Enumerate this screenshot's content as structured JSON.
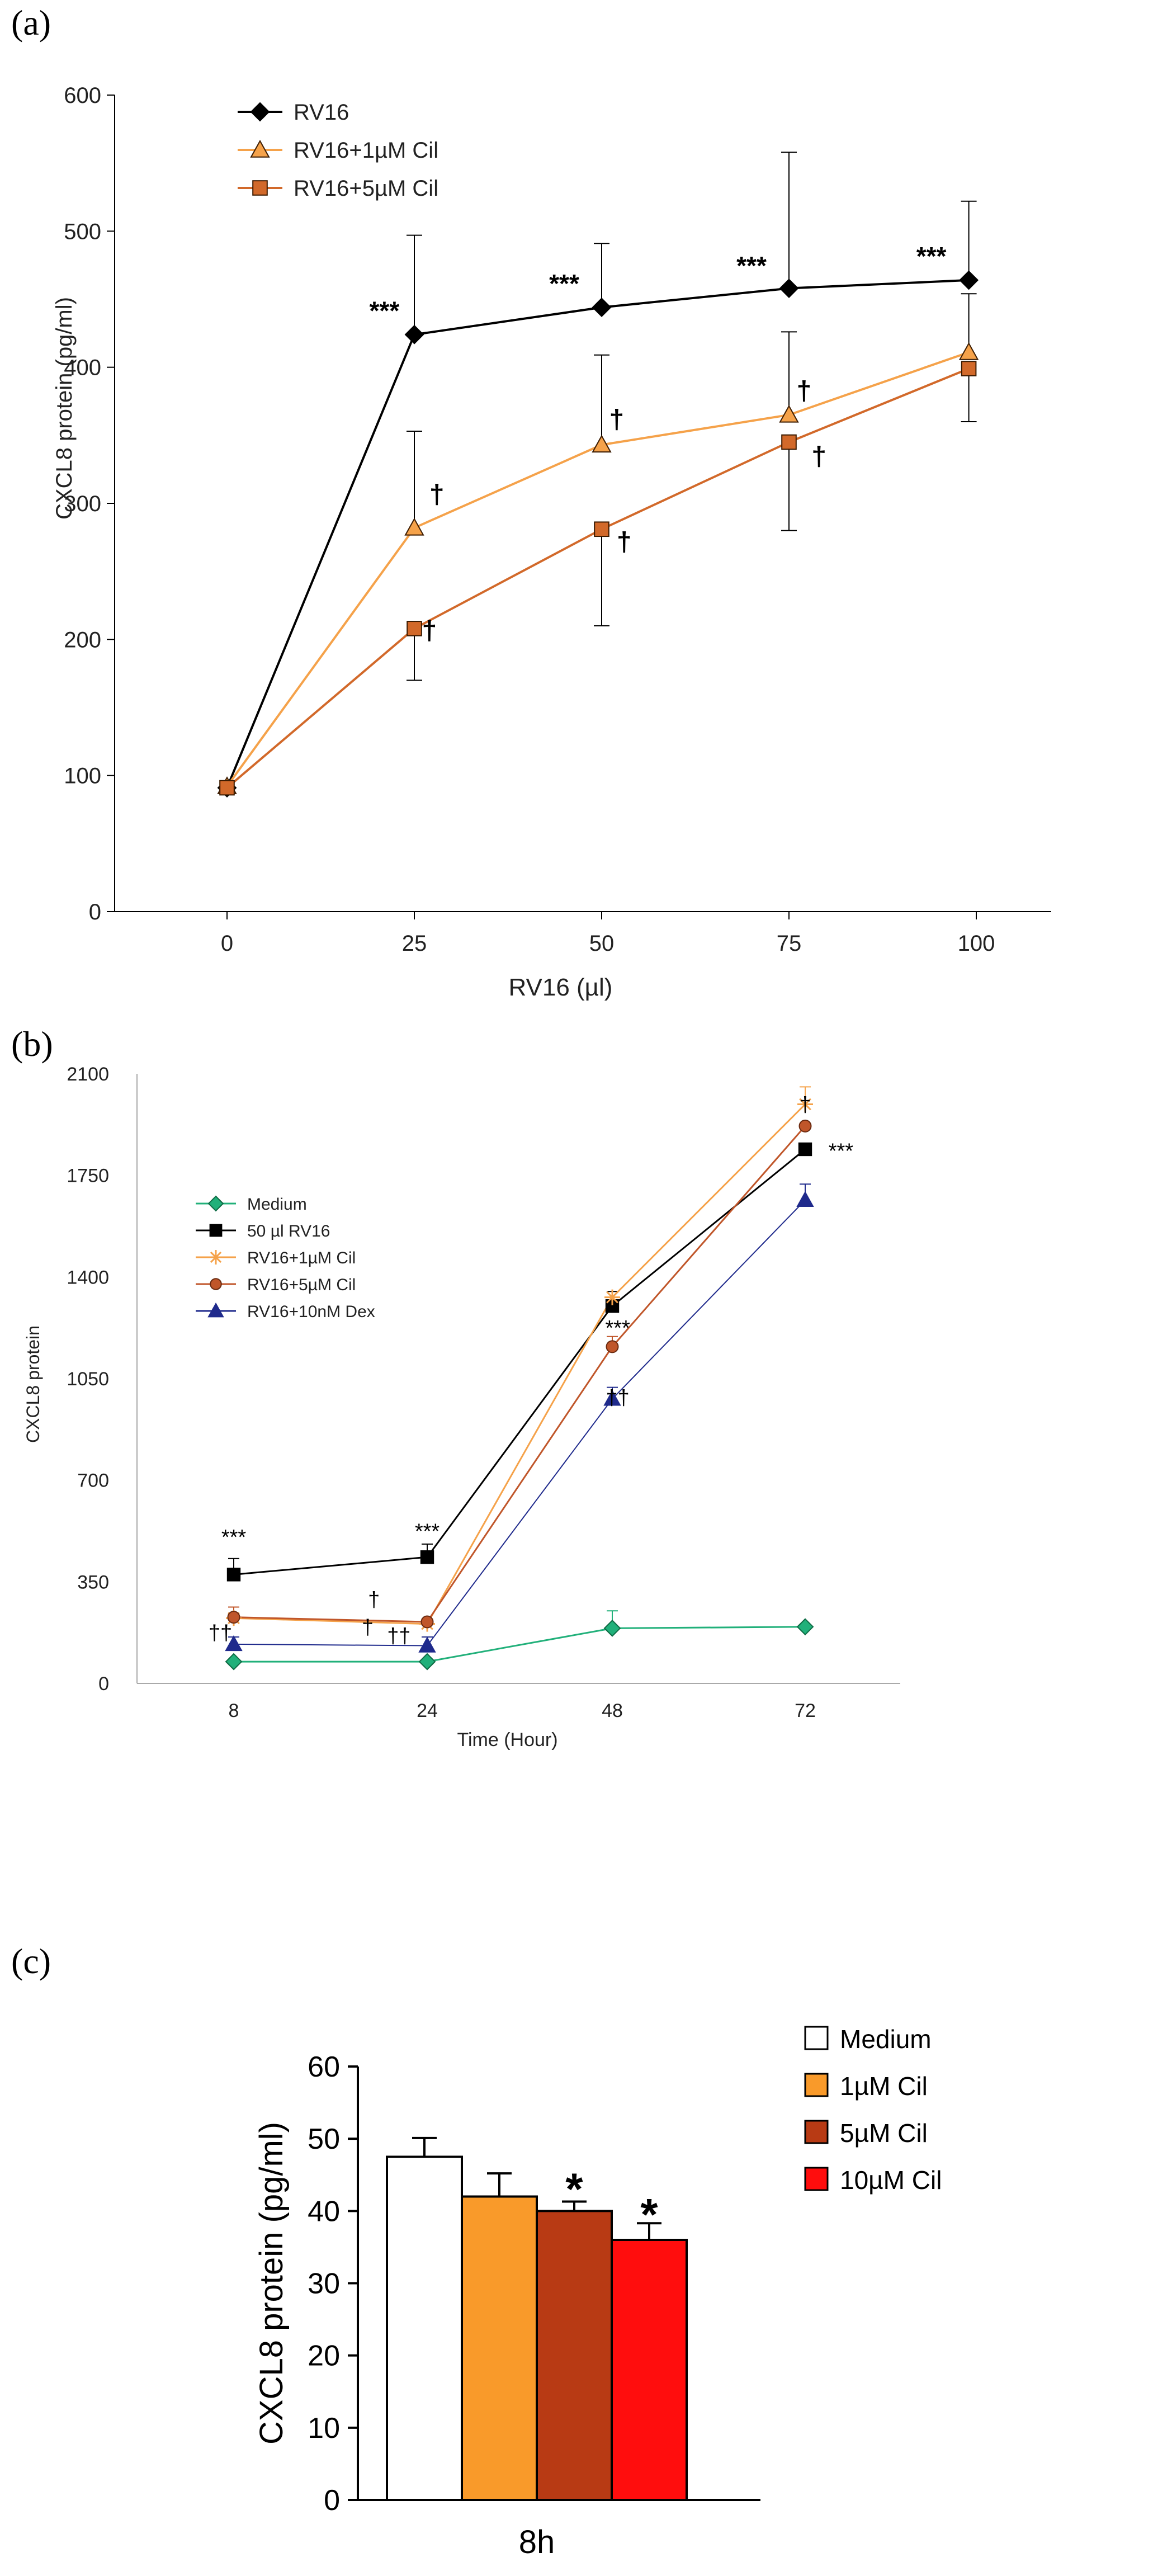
{
  "panels": {
    "a": {
      "label": "(a)"
    },
    "b": {
      "label": "(b)"
    },
    "c": {
      "label": "(c)"
    }
  },
  "chart_data": [
    {
      "type": "line",
      "title": "",
      "xlabel": "RV16 (µl)",
      "ylabel": "CXCL8 protein (pg/ml)",
      "x": [
        0,
        25,
        50,
        75,
        100
      ],
      "x_tick_labels": [
        "0",
        "25",
        "50",
        "75",
        "100"
      ],
      "xlim": [
        -15,
        110
      ],
      "ylim": [
        0,
        600
      ],
      "y_ticks": [
        0,
        100,
        200,
        300,
        400,
        500,
        600
      ],
      "grid": false,
      "legend_position": "top-left",
      "series": [
        {
          "name": "RV16",
          "marker": "diamond",
          "color": "#000000",
          "x": [
            0,
            25,
            50,
            75,
            99
          ],
          "values": [
            91,
            424,
            444,
            458,
            464
          ],
          "err_up": [
            0,
            73,
            47,
            100,
            58
          ]
        },
        {
          "name": "RV16+1µM Cil",
          "marker": "triangle",
          "color": "#f5a24a",
          "x": [
            0,
            25,
            50,
            75,
            99
          ],
          "values": [
            92,
            282,
            343,
            365,
            411
          ],
          "err_up": [
            0,
            71,
            66,
            61,
            43
          ]
        },
        {
          "name": "RV16+5µM Cil",
          "marker": "square",
          "color": "#d2692a",
          "x": [
            0,
            25,
            50,
            75,
            99
          ],
          "values": [
            91,
            208,
            281,
            345,
            399
          ],
          "err_down": [
            0,
            38,
            71,
            65,
            39
          ]
        }
      ],
      "annotations": [
        {
          "text": "***",
          "x": 21,
          "y": 435
        },
        {
          "text": "***",
          "x": 45,
          "y": 455
        },
        {
          "text": "***",
          "x": 70,
          "y": 468
        },
        {
          "text": "***",
          "x": 94,
          "y": 475
        },
        {
          "text": "†",
          "x": 28,
          "y": 300
        },
        {
          "text": "†",
          "x": 27,
          "y": 200
        },
        {
          "text": "†",
          "x": 52,
          "y": 355
        },
        {
          "text": "†",
          "x": 53,
          "y": 265
        },
        {
          "text": "†",
          "x": 77,
          "y": 376
        },
        {
          "text": "†",
          "x": 79,
          "y": 328
        }
      ]
    },
    {
      "type": "line",
      "title": "",
      "xlabel": "Time (Hour)",
      "ylabel": "CXCL8 protein",
      "x": [
        8,
        24,
        48,
        72
      ],
      "x_tick_labels": [
        "8",
        "24",
        "48",
        "72"
      ],
      "ylim": [
        0,
        2100
      ],
      "y_ticks": [
        0,
        350,
        700,
        1050,
        1400,
        1750,
        2100
      ],
      "grid": false,
      "legend_position": "top-left",
      "series": [
        {
          "name": "Medium",
          "marker": "diamond",
          "color": "#21b07a",
          "values": [
            75,
            75,
            190,
            195
          ],
          "err": [
            0,
            0,
            60,
            0
          ]
        },
        {
          "name": "50 µl RV16",
          "marker": "square",
          "color": "#000000",
          "values": [
            375,
            435,
            1300,
            1840
          ],
          "err": [
            55,
            45,
            50,
            0
          ]
        },
        {
          "name": "RV16+1µM Cil",
          "marker": "star",
          "color": "#f5a24a",
          "values": [
            225,
            205,
            1330,
            1995
          ],
          "err": [
            0,
            0,
            0,
            60
          ]
        },
        {
          "name": "RV16+5µM Cil",
          "marker": "circle",
          "color": "#c0562a",
          "values": [
            228,
            212,
            1160,
            1920
          ],
          "err": [
            35,
            0,
            35,
            0
          ]
        },
        {
          "name": "RV16+10nM Dex",
          "marker": "triangle",
          "color": "#1f2a8c",
          "values": [
            135,
            130,
            980,
            1665
          ],
          "err": [
            25,
            30,
            40,
            55
          ]
        }
      ],
      "annotations": [
        {
          "text": "***",
          "x": 8,
          "y": 480
        },
        {
          "text": "***",
          "x": 24,
          "y": 500
        },
        {
          "text": "***",
          "x": 51,
          "y": 1200
        },
        {
          "text": "***",
          "x": 76,
          "y": 1810
        },
        {
          "text": "††",
          "x": 6.5,
          "y": 150
        },
        {
          "text": "†",
          "x": 23.7,
          "y": 265
        },
        {
          "text": "†",
          "x": 23,
          "y": 170
        },
        {
          "text": "††",
          "x": 26.5,
          "y": 140
        },
        {
          "text": "††",
          "x": 51,
          "y": 960
        },
        {
          "text": "†",
          "x": 72,
          "y": 1970
        }
      ]
    },
    {
      "type": "bar",
      "title": "",
      "xlabel": "8h",
      "ylabel": "CXCL8 protein (pg/ml)",
      "categories": [
        "Medium",
        "1µM Cil",
        "5µM Cil",
        "10µM Cil"
      ],
      "values": [
        47.5,
        42,
        40,
        36
      ],
      "err": [
        2.6,
        3.2,
        1.3,
        2.3
      ],
      "colors": [
        "#ffffff",
        "#f99a2a",
        "#b83a14",
        "#ff0d0d"
      ],
      "ylim": [
        0,
        60
      ],
      "y_ticks": [
        0,
        10,
        20,
        30,
        40,
        50,
        60
      ],
      "grid": false,
      "legend_position": "right",
      "annotations": [
        {
          "text": "*",
          "category": 2,
          "y": 44
        },
        {
          "text": "*",
          "category": 3,
          "y": 40.5
        }
      ]
    }
  ]
}
